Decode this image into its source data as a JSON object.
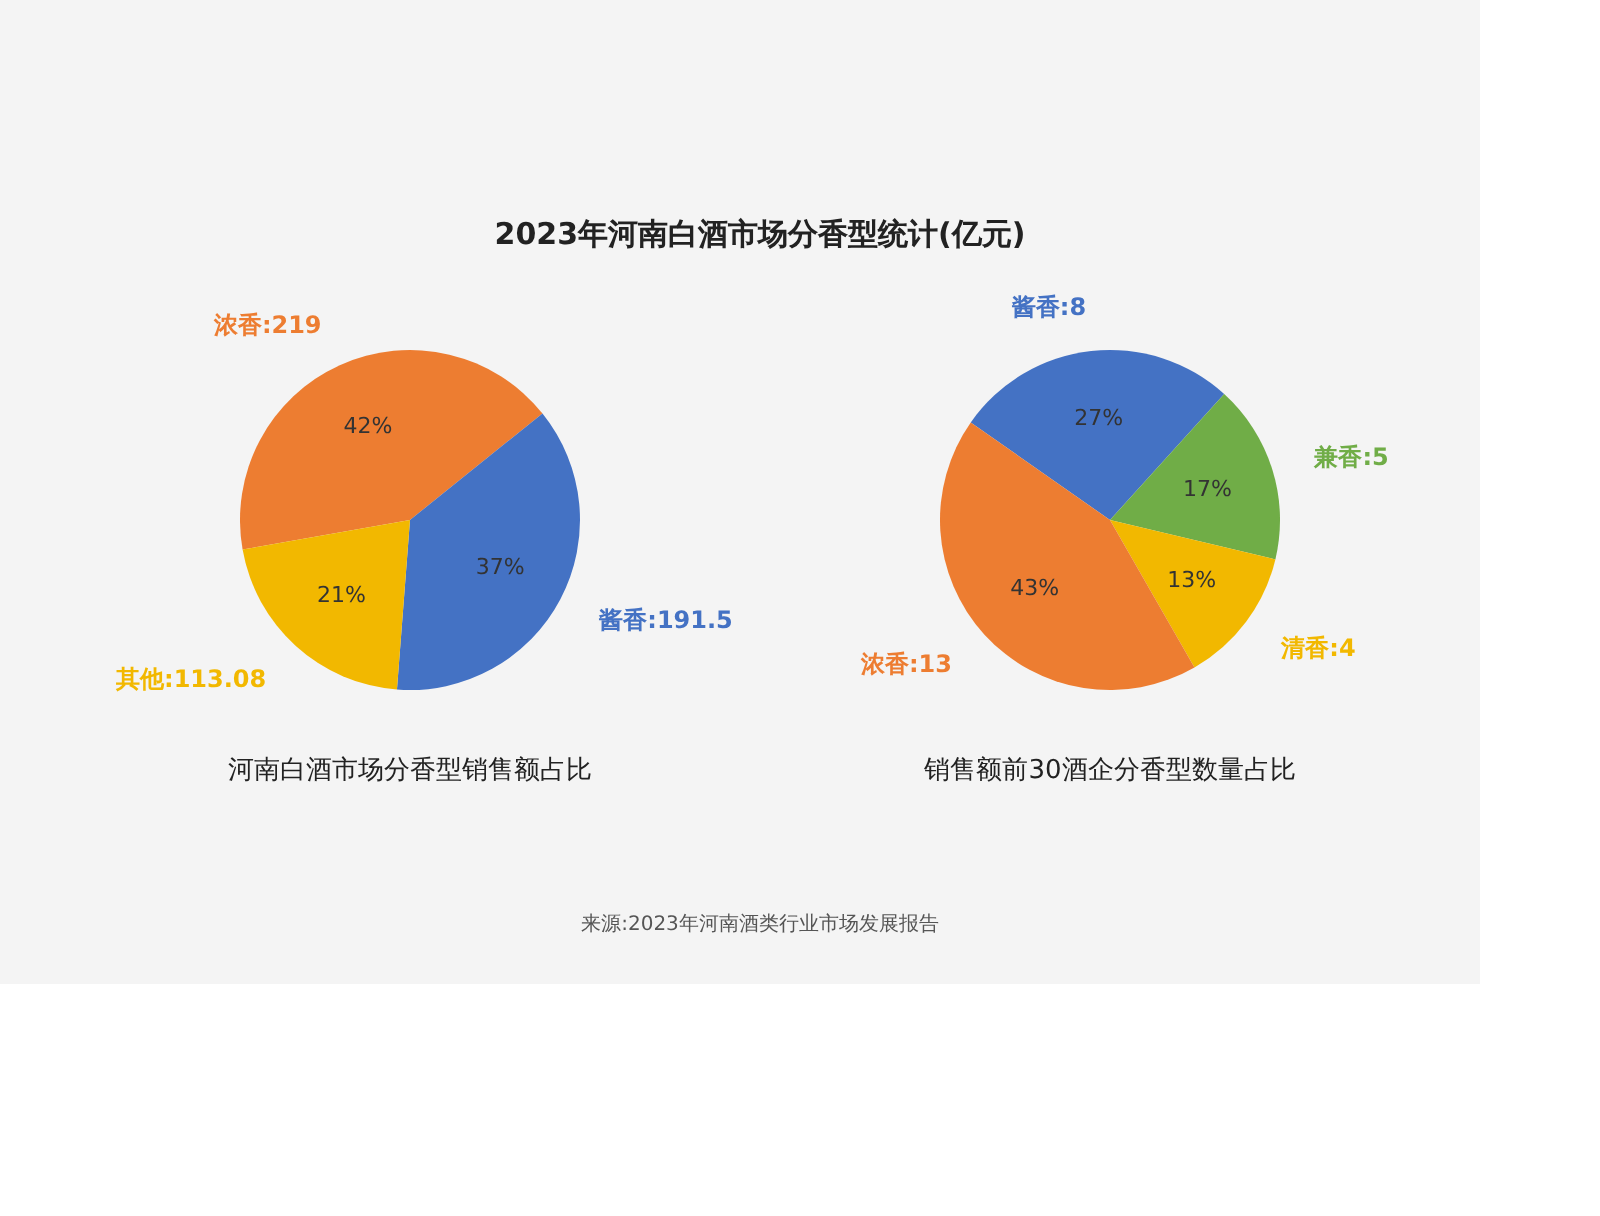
{
  "chart_data": [
    {
      "type": "pie",
      "title": "2023年河南白酒市场分香型统计(亿元)",
      "xlabel": "河南白酒市场分香型销售额占比",
      "categories": [
        "浓香:219",
        "酱香:191.5",
        "其他:113.08"
      ],
      "values": [
        42,
        37,
        21
      ],
      "colors": [
        "#ed7d31",
        "#4472c4",
        "#f2b800"
      ],
      "value_labels": [
        "42%",
        "37%",
        "21%"
      ]
    },
    {
      "type": "pie",
      "xlabel": "销售额前30酒企分香型数量占比",
      "categories": [
        "酱香:8",
        "兼香:5",
        "清香:4",
        "浓香:13"
      ],
      "values": [
        27,
        17,
        13,
        43
      ],
      "colors": [
        "#4472c4",
        "#70ad47",
        "#f2b800",
        "#ed7d31"
      ],
      "value_labels": [
        "27%",
        "17%",
        "13%",
        "43%"
      ],
      "annotations": [
        "来源:2023年河南酒类行业市场发展报告"
      ]
    }
  ]
}
